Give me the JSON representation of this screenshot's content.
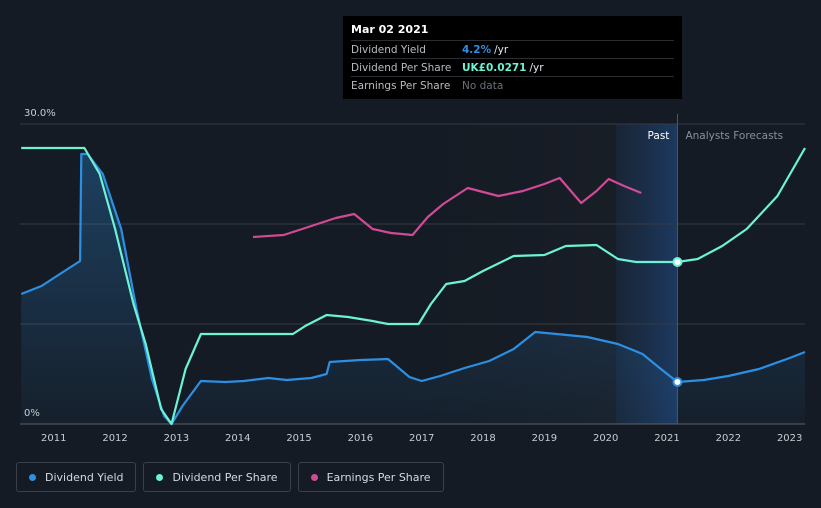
{
  "tooltip": {
    "date": "Mar 02 2021",
    "rows": [
      {
        "label": "Dividend Yield",
        "value": "4.2%",
        "unit": "/yr",
        "color": "#2d8fe2"
      },
      {
        "label": "Dividend Per Share",
        "value": "UK£0.0271",
        "unit": "/yr",
        "color": "#6cf2d4"
      },
      {
        "label": "Earnings Per Share",
        "value": "No data",
        "unit": "",
        "color": "#6b7078"
      }
    ]
  },
  "regions": {
    "past": "Past",
    "forecast": "Analysts Forecasts"
  },
  "legend": [
    {
      "label": "Dividend Yield",
      "color": "#2d8fe2"
    },
    {
      "label": "Dividend Per Share",
      "color": "#6cf2d4"
    },
    {
      "label": "Earnings Per Share",
      "color": "#d04a95"
    }
  ],
  "chart_data": {
    "type": "line",
    "y_tick_labels": [
      "30.0%",
      "0%"
    ],
    "ylim": [
      0,
      30
    ],
    "x_tick_labels": [
      "2011",
      "2012",
      "2013",
      "2014",
      "2015",
      "2016",
      "2017",
      "2018",
      "2019",
      "2020",
      "2021",
      "2022",
      "2023"
    ],
    "xlim": [
      2010.45,
      2023.25
    ],
    "past_end": 2021.17,
    "highlight_start": 2020.17,
    "series": [
      {
        "name": "Dividend Yield",
        "color": "#2d8fe2",
        "fill": true,
        "points": [
          [
            2010.47,
            13.0
          ],
          [
            2010.8,
            13.8
          ],
          [
            2011.1,
            15.0
          ],
          [
            2011.43,
            16.3
          ],
          [
            2011.45,
            27.0
          ],
          [
            2011.55,
            27.0
          ],
          [
            2011.8,
            25.0
          ],
          [
            2012.1,
            19.5
          ],
          [
            2012.35,
            11.5
          ],
          [
            2012.6,
            4.5
          ],
          [
            2012.8,
            0.8
          ],
          [
            2012.92,
            0.0
          ],
          [
            2013.1,
            1.8
          ],
          [
            2013.4,
            4.3
          ],
          [
            2013.8,
            4.2
          ],
          [
            2014.1,
            4.3
          ],
          [
            2014.5,
            4.6
          ],
          [
            2014.8,
            4.4
          ],
          [
            2015.2,
            4.6
          ],
          [
            2015.45,
            5.0
          ],
          [
            2015.5,
            6.2
          ],
          [
            2016.0,
            6.4
          ],
          [
            2016.45,
            6.5
          ],
          [
            2016.8,
            4.7
          ],
          [
            2017.0,
            4.3
          ],
          [
            2017.3,
            4.8
          ],
          [
            2017.7,
            5.6
          ],
          [
            2018.1,
            6.3
          ],
          [
            2018.5,
            7.5
          ],
          [
            2018.85,
            9.2
          ],
          [
            2019.2,
            9.0
          ],
          [
            2019.7,
            8.7
          ],
          [
            2020.2,
            8.0
          ],
          [
            2020.6,
            7.0
          ],
          [
            2020.9,
            5.5
          ],
          [
            2021.17,
            4.2
          ],
          [
            2021.6,
            4.4
          ],
          [
            2022.0,
            4.8
          ],
          [
            2022.5,
            5.5
          ],
          [
            2023.0,
            6.6
          ],
          [
            2023.25,
            7.2
          ]
        ]
      },
      {
        "name": "Dividend Per Share",
        "color": "#6cf2d4",
        "fill": false,
        "points": [
          [
            2010.47,
            27.6
          ],
          [
            2011.2,
            27.6
          ],
          [
            2011.5,
            27.6
          ],
          [
            2011.75,
            25.0
          ],
          [
            2012.0,
            19.5
          ],
          [
            2012.3,
            12.0
          ],
          [
            2012.5,
            8.0
          ],
          [
            2012.75,
            1.5
          ],
          [
            2012.92,
            0.0
          ],
          [
            2013.15,
            5.5
          ],
          [
            2013.4,
            9.0
          ],
          [
            2014.0,
            9.0
          ],
          [
            2014.6,
            9.0
          ],
          [
            2014.9,
            9.0
          ],
          [
            2015.1,
            9.8
          ],
          [
            2015.45,
            10.9
          ],
          [
            2015.8,
            10.7
          ],
          [
            2016.2,
            10.3
          ],
          [
            2016.45,
            10.0
          ],
          [
            2016.8,
            10.0
          ],
          [
            2016.95,
            10.0
          ],
          [
            2017.15,
            12.0
          ],
          [
            2017.4,
            14.0
          ],
          [
            2017.7,
            14.3
          ],
          [
            2018.0,
            15.3
          ],
          [
            2018.5,
            16.8
          ],
          [
            2019.0,
            16.9
          ],
          [
            2019.35,
            17.8
          ],
          [
            2019.85,
            17.9
          ],
          [
            2020.2,
            16.5
          ],
          [
            2020.5,
            16.2
          ],
          [
            2021.17,
            16.2
          ],
          [
            2021.5,
            16.5
          ],
          [
            2021.9,
            17.8
          ],
          [
            2022.3,
            19.5
          ],
          [
            2022.8,
            22.8
          ],
          [
            2023.25,
            27.6
          ]
        ]
      },
      {
        "name": "Earnings Per Share",
        "color": "#d04a95",
        "fill": false,
        "points": [
          [
            2014.25,
            18.7
          ],
          [
            2014.75,
            18.9
          ],
          [
            2015.1,
            19.6
          ],
          [
            2015.6,
            20.6
          ],
          [
            2015.9,
            21.0
          ],
          [
            2016.2,
            19.5
          ],
          [
            2016.5,
            19.1
          ],
          [
            2016.85,
            18.9
          ],
          [
            2017.1,
            20.7
          ],
          [
            2017.35,
            22.0
          ],
          [
            2017.75,
            23.6
          ],
          [
            2018.25,
            22.8
          ],
          [
            2018.65,
            23.3
          ],
          [
            2019.0,
            24.0
          ],
          [
            2019.25,
            24.6
          ],
          [
            2019.6,
            22.1
          ],
          [
            2019.85,
            23.3
          ],
          [
            2020.05,
            24.5
          ],
          [
            2020.3,
            23.8
          ],
          [
            2020.58,
            23.1
          ]
        ]
      }
    ],
    "markers": [
      {
        "series": "Dividend Per Share",
        "x": 2021.17,
        "y": 16.2
      },
      {
        "series": "Dividend Yield",
        "x": 2021.17,
        "y": 4.2
      }
    ]
  }
}
